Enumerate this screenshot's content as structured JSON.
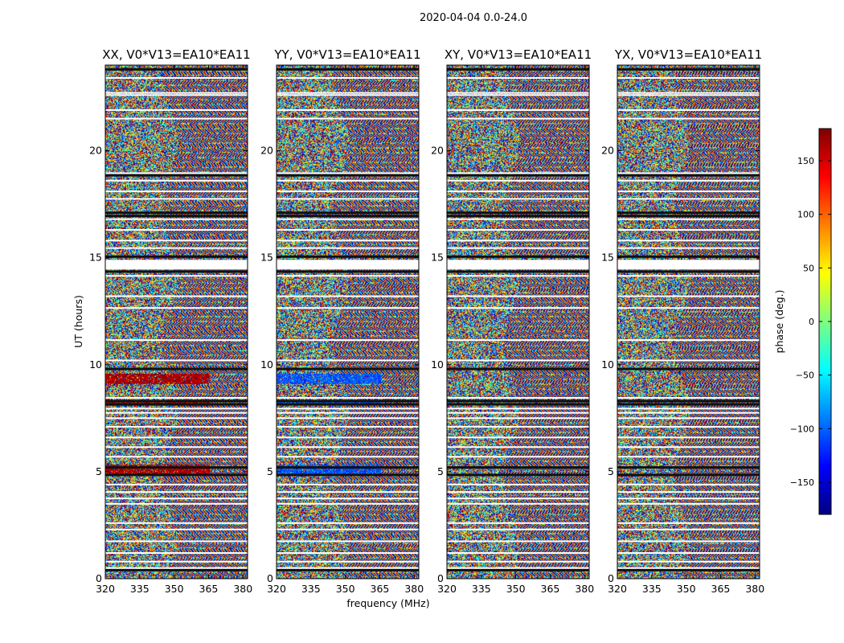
{
  "figure": {
    "suptitle": "2020-04-04 0.0-24.0",
    "xlabel": "frequency (MHz)",
    "ylabel": "UT (hours)",
    "colorbar_label": "phase (deg.)"
  },
  "colors": {
    "colormap": [
      "#00007f",
      "#0000ff",
      "#007fff",
      "#00ffff",
      "#7fff7f",
      "#ffff00",
      "#ff7f00",
      "#ff0000",
      "#7f0000"
    ],
    "axes": "#000000",
    "flagged": "#ffffff"
  },
  "chart_data": {
    "type": "heatmap",
    "colormap": "jet",
    "panels": [
      {
        "title": "XX, V0*V13=EA10*EA11",
        "feature": "red",
        "feature_value": 165
      },
      {
        "title": "YY, V0*V13=EA10*EA11",
        "feature": "blue",
        "feature_value": -105
      },
      {
        "title": "XY, V0*V13=EA10*EA11",
        "feature": "noise",
        "feature_value": 0
      },
      {
        "title": "YX, V0*V13=EA10*EA11",
        "feature": "noise",
        "feature_value": 0
      }
    ],
    "xlim": [
      320,
      382
    ],
    "xticks": [
      320,
      335,
      350,
      365,
      380
    ],
    "xtick_labels": [
      "320",
      "335",
      "350",
      "365",
      "380"
    ],
    "ylim": [
      0,
      24
    ],
    "yticks": [
      0,
      5,
      10,
      15,
      20
    ],
    "ytick_labels": [
      "0",
      "5",
      "10",
      "15",
      "20"
    ],
    "clim": [
      -180,
      180
    ],
    "colorbar_ticks": [
      150,
      100,
      50,
      0,
      -50,
      -100,
      -150
    ],
    "colorbar_tick_labels": [
      "150",
      "100",
      "50",
      "0",
      "−50",
      "−100",
      "−150"
    ],
    "white_gaps_ut": [
      0.5,
      0.8,
      1.2,
      1.75,
      2.3,
      2.6,
      3.5,
      3.75,
      4.05,
      4.4,
      5.7,
      6.15,
      6.6,
      7.1,
      7.5,
      7.75,
      7.95,
      8.45,
      10.2,
      11.15,
      12.65,
      13.2,
      14.15,
      15.45,
      15.8,
      16.3,
      16.8,
      17.75,
      18.1,
      18.6,
      18.95,
      21.5,
      21.9,
      22.6,
      22.7,
      23.4
    ],
    "dark_bands_ut": [
      0.4,
      4.85,
      5.2,
      8.3,
      8.15,
      14.35,
      15.05,
      17.1,
      16.95,
      18.85,
      23.8,
      9.8
    ],
    "missing_band_ut": [
      14.45,
      14.9
    ],
    "fringe_freq_start": 362,
    "red_band_ut": [
      [
        9.1,
        9.6
      ],
      [
        4.9,
        5.35
      ],
      [
        8.1,
        8.3
      ]
    ],
    "blue_band_ut": [
      [
        9.1,
        9.6
      ],
      [
        4.9,
        5.35
      ],
      [
        8.1,
        8.3
      ]
    ]
  }
}
